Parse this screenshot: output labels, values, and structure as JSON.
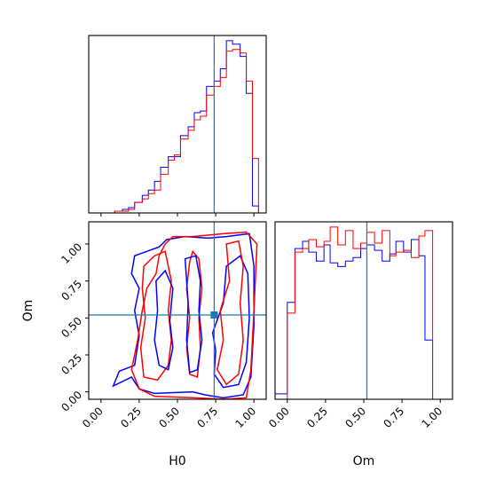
{
  "colors": {
    "chain_a": "#0000ff",
    "chain_b": "#ff0000",
    "truth": "#1f77b4"
  },
  "chart_data": [
    {
      "panel": "H0-marginal",
      "type": "histogram-step",
      "x_range": [
        -0.08,
        1.08
      ],
      "xticks": [
        0,
        0.25,
        0.5,
        0.75,
        1.0
      ],
      "truth_x": 0.74,
      "bin_edges": [
        0.09,
        0.14,
        0.18,
        0.22,
        0.27,
        0.31,
        0.35,
        0.39,
        0.44,
        0.48,
        0.52,
        0.57,
        0.61,
        0.65,
        0.69,
        0.74,
        0.78,
        0.82,
        0.86,
        0.91,
        0.95,
        0.99,
        1.03
      ],
      "series": [
        {
          "color": "#0000ff",
          "counts": [
            1,
            2,
            3,
            6,
            10,
            13,
            18,
            26,
            32,
            32,
            44,
            49,
            57,
            58,
            72,
            75,
            82,
            98,
            96,
            89,
            68,
            4
          ]
        },
        {
          "color": "#ff0000",
          "counts": [
            1,
            1,
            2,
            6,
            8,
            11,
            13,
            22,
            30,
            33,
            42,
            47,
            53,
            55,
            67,
            72,
            77,
            92,
            93,
            91,
            75,
            31
          ]
        }
      ]
    },
    {
      "panel": "H0-Om-contours",
      "type": "contour",
      "x_range": [
        -0.08,
        1.08
      ],
      "y_range": [
        -0.05,
        1.15
      ],
      "xticks": [
        "0.00",
        "0.25",
        "0.50",
        "0.75",
        "1.00"
      ],
      "yticks": [
        "0.00",
        "0.25",
        "0.50",
        "0.75",
        "1.00"
      ],
      "xlabel": "H0",
      "ylabel": "Om",
      "truth_point": [
        0.74,
        0.52
      ],
      "contours": [
        {
          "color": "#0000ff",
          "level": "outer",
          "points": [
            [
              0.43,
              1.03
            ],
            [
              0.55,
              1.05
            ],
            [
              0.7,
              1.04
            ],
            [
              0.82,
              1.05
            ],
            [
              0.97,
              1.07
            ],
            [
              1.0,
              0.85
            ],
            [
              1.0,
              0.45
            ],
            [
              0.98,
              0.1
            ],
            [
              0.93,
              -0.02
            ],
            [
              0.8,
              -0.04
            ],
            [
              0.68,
              -0.02
            ],
            [
              0.6,
              0.0
            ],
            [
              0.35,
              -0.01
            ],
            [
              0.25,
              0.02
            ],
            [
              0.2,
              0.1
            ],
            [
              0.08,
              0.04
            ],
            [
              0.12,
              0.14
            ],
            [
              0.22,
              0.18
            ],
            [
              0.25,
              0.38
            ],
            [
              0.22,
              0.55
            ],
            [
              0.25,
              0.7
            ],
            [
              0.2,
              0.8
            ],
            [
              0.22,
              0.92
            ],
            [
              0.3,
              0.95
            ],
            [
              0.38,
              0.98
            ]
          ]
        },
        {
          "color": "#0000ff",
          "level": "inner",
          "points": [
            [
              0.73,
              0.4
            ],
            [
              0.8,
              0.6
            ],
            [
              0.82,
              0.85
            ],
            [
              0.91,
              0.92
            ],
            [
              0.96,
              0.8
            ],
            [
              0.97,
              0.5
            ],
            [
              0.95,
              0.2
            ],
            [
              0.9,
              0.05
            ],
            [
              0.8,
              0.03
            ],
            [
              0.74,
              0.12
            ],
            [
              0.75,
              0.28
            ]
          ]
        },
        {
          "color": "#ff0000",
          "level": "outer",
          "points": [
            [
              0.42,
              1.0
            ],
            [
              0.47,
              1.05
            ],
            [
              0.6,
              1.05
            ],
            [
              0.8,
              1.07
            ],
            [
              0.95,
              1.08
            ],
            [
              1.02,
              1.0
            ],
            [
              1.0,
              0.55
            ],
            [
              0.98,
              0.15
            ],
            [
              0.95,
              -0.04
            ],
            [
              0.8,
              -0.05
            ],
            [
              0.62,
              -0.04
            ],
            [
              0.35,
              -0.03
            ],
            [
              0.25,
              0.02
            ],
            [
              0.2,
              0.15
            ],
            [
              0.24,
              0.35
            ],
            [
              0.27,
              0.55
            ],
            [
              0.3,
              0.7
            ],
            [
              0.36,
              0.8
            ],
            [
              0.38,
              0.92
            ]
          ]
        },
        {
          "color": "#ff0000",
          "level": "inner",
          "points": [
            [
              0.28,
              0.85
            ],
            [
              0.35,
              0.92
            ],
            [
              0.42,
              0.95
            ],
            [
              0.46,
              0.75
            ],
            [
              0.44,
              0.55
            ],
            [
              0.46,
              0.35
            ],
            [
              0.44,
              0.18
            ],
            [
              0.37,
              0.08
            ],
            [
              0.28,
              0.1
            ],
            [
              0.26,
              0.3
            ],
            [
              0.29,
              0.5
            ],
            [
              0.27,
              0.7
            ]
          ]
        },
        {
          "color": "#ff0000",
          "level": "inner",
          "points": [
            [
              0.6,
              0.95
            ],
            [
              0.64,
              0.9
            ],
            [
              0.66,
              0.7
            ],
            [
              0.64,
              0.5
            ],
            [
              0.65,
              0.3
            ],
            [
              0.63,
              0.1
            ],
            [
              0.58,
              0.12
            ],
            [
              0.56,
              0.3
            ],
            [
              0.58,
              0.5
            ],
            [
              0.56,
              0.7
            ],
            [
              0.58,
              0.88
            ]
          ]
        },
        {
          "color": "#ff0000",
          "level": "inner",
          "points": [
            [
              0.82,
              1.0
            ],
            [
              0.9,
              1.02
            ],
            [
              0.93,
              0.85
            ],
            [
              0.91,
              0.6
            ],
            [
              0.93,
              0.35
            ],
            [
              0.9,
              0.12
            ],
            [
              0.82,
              0.05
            ],
            [
              0.76,
              0.15
            ],
            [
              0.8,
              0.35
            ],
            [
              0.78,
              0.55
            ],
            [
              0.84,
              0.75
            ]
          ]
        },
        {
          "color": "#0000ff",
          "level": "inner",
          "points": [
            [
              0.36,
              0.75
            ],
            [
              0.42,
              0.82
            ],
            [
              0.47,
              0.7
            ],
            [
              0.45,
              0.48
            ],
            [
              0.47,
              0.3
            ],
            [
              0.44,
              0.15
            ],
            [
              0.38,
              0.18
            ],
            [
              0.35,
              0.35
            ],
            [
              0.37,
              0.55
            ]
          ]
        },
        {
          "color": "#0000ff",
          "level": "inner",
          "points": [
            [
              0.55,
              0.9
            ],
            [
              0.62,
              0.92
            ],
            [
              0.65,
              0.75
            ],
            [
              0.64,
              0.55
            ],
            [
              0.66,
              0.35
            ],
            [
              0.63,
              0.15
            ],
            [
              0.58,
              0.13
            ],
            [
              0.56,
              0.35
            ],
            [
              0.57,
              0.6
            ]
          ]
        }
      ]
    },
    {
      "panel": "Om-marginal",
      "type": "histogram-step",
      "x_range": [
        -0.08,
        1.08
      ],
      "xticks": [
        "0.00",
        "0.25",
        "0.50",
        "0.75",
        "1.00"
      ],
      "xlabel": "Om",
      "truth_x": 0.52,
      "bin_edges": [
        -0.08,
        -0.01,
        0.0,
        0.05,
        0.1,
        0.14,
        0.19,
        0.24,
        0.28,
        0.33,
        0.38,
        0.43,
        0.48,
        0.52,
        0.57,
        0.62,
        0.67,
        0.71,
        0.76,
        0.81,
        0.86,
        0.9,
        0.95,
        1.0,
        1.04
      ],
      "series": [
        {
          "color": "#0000ff",
          "counts": [
            3,
            3,
            54,
            84,
            88,
            82,
            77,
            86,
            76,
            74,
            77,
            79,
            84,
            86,
            83,
            77,
            81,
            88,
            82,
            89,
            80,
            33,
            0,
            0
          ]
        },
        {
          "color": "#ff0000",
          "counts": [
            0,
            0,
            48,
            82,
            84,
            89,
            85,
            88,
            96,
            86,
            94,
            84,
            87,
            93,
            87,
            94,
            80,
            82,
            83,
            79,
            91,
            94,
            0,
            0
          ]
        }
      ]
    }
  ]
}
